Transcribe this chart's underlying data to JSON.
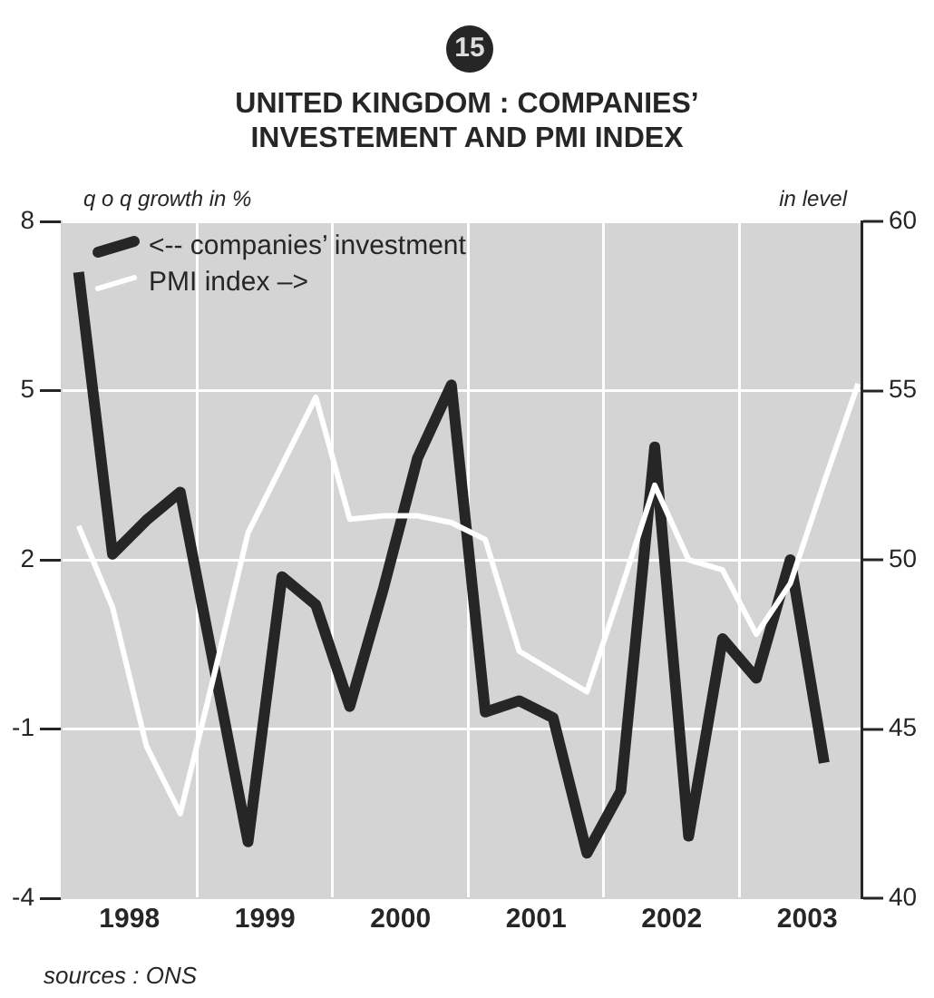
{
  "chart_data": {
    "type": "line",
    "title": "UNITED KINGDOM : COMPANIES’ INVESTEMENT AND PMI INDEX",
    "ylabel": "q o q growth in %",
    "y2label": "in level",
    "annotations": [
      "15",
      "sources : ONS"
    ],
    "x": [
      1998.125,
      1998.375,
      1998.625,
      1998.875,
      1999.125,
      1999.375,
      1999.625,
      1999.875,
      2000.125,
      2000.375,
      2000.625,
      2000.875,
      2001.125,
      2001.375,
      2001.625,
      2001.875,
      2002.125,
      2002.375,
      2002.625,
      2002.875,
      2003.125,
      2003.375,
      2003.625,
      2003.875
    ],
    "series": [
      {
        "name": "<-- companies’ investment",
        "color": "#262626",
        "values": [
          7.1,
          2.1,
          2.7,
          3.2,
          0.1,
          -3.0,
          1.7,
          1.2,
          -0.6,
          1.5,
          3.8,
          5.1,
          -0.7,
          -0.5,
          -0.8,
          -3.2,
          -2.1,
          4.0,
          -2.9,
          0.6,
          -0.1,
          2.0,
          -1.6,
          null
        ]
      },
      {
        "name": "PMI index –>",
        "color": "#ffffff",
        "axis": "y2",
        "values": [
          51.0,
          48.6,
          44.5,
          42.5,
          46.6,
          50.8,
          52.8,
          54.8,
          51.2,
          51.3,
          51.3,
          51.1,
          50.6,
          47.3,
          46.7,
          46.1,
          49.1,
          52.2,
          50.0,
          49.7,
          47.8,
          49.3,
          52.3,
          55.2
        ]
      }
    ],
    "xlim": [
      1998,
      2003.9
    ],
    "xticks": [
      {
        "value": 1998.5,
        "label": "1998"
      },
      {
        "value": 1999,
        "label": null
      },
      {
        "value": 1999.5,
        "label": "1999"
      },
      {
        "value": 2000,
        "label": null
      },
      {
        "value": 2000.5,
        "label": "2000"
      },
      {
        "value": 2001,
        "label": null
      },
      {
        "value": 2001.5,
        "label": "2001"
      },
      {
        "value": 2002,
        "label": null
      },
      {
        "value": 2002.5,
        "label": "2002"
      },
      {
        "value": 2003,
        "label": null
      },
      {
        "value": 2003.5,
        "label": "2003"
      }
    ],
    "ylim": [
      -4,
      8
    ],
    "yticks": [
      -4,
      -1,
      2,
      5,
      8
    ],
    "y2lim": [
      40,
      60
    ],
    "y2ticks": [
      40,
      45,
      50,
      55,
      60
    ],
    "grid": true,
    "legend": "top left",
    "marker": "none",
    "line_style": "solid"
  }
}
